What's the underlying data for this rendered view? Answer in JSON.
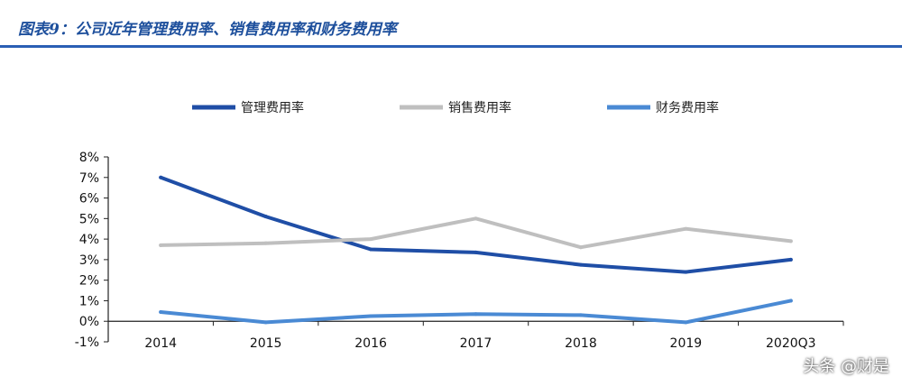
{
  "figure_title": "图表9：公司近年管理费用率、销售费用率和财务费用率",
  "watermark": "头条 @财是",
  "chart_data": {
    "type": "line",
    "title": "",
    "xlabel": "",
    "ylabel": "",
    "categories": [
      "2014",
      "2015",
      "2016",
      "2017",
      "2018",
      "2019",
      "2020Q3"
    ],
    "ylim": [
      -1,
      8
    ],
    "yticks": [
      -1,
      0,
      1,
      2,
      3,
      4,
      5,
      6,
      7,
      8
    ],
    "ytick_labels": [
      "-1%",
      "0%",
      "1%",
      "2%",
      "3%",
      "4%",
      "5%",
      "6%",
      "7%",
      "8%"
    ],
    "grid": false,
    "legend_position": "top",
    "series": [
      {
        "name": "管理费用率",
        "color": "#1f4ea6",
        "values": [
          7.0,
          5.1,
          3.5,
          3.35,
          2.75,
          2.4,
          3.0
        ]
      },
      {
        "name": "销售费用率",
        "color": "#bfbfbf",
        "values": [
          3.7,
          3.8,
          4.0,
          5.0,
          3.6,
          4.5,
          3.9
        ]
      },
      {
        "name": "财务费用率",
        "color": "#4a8ad4",
        "values": [
          0.45,
          -0.05,
          0.25,
          0.35,
          0.3,
          -0.05,
          1.0
        ]
      }
    ]
  }
}
